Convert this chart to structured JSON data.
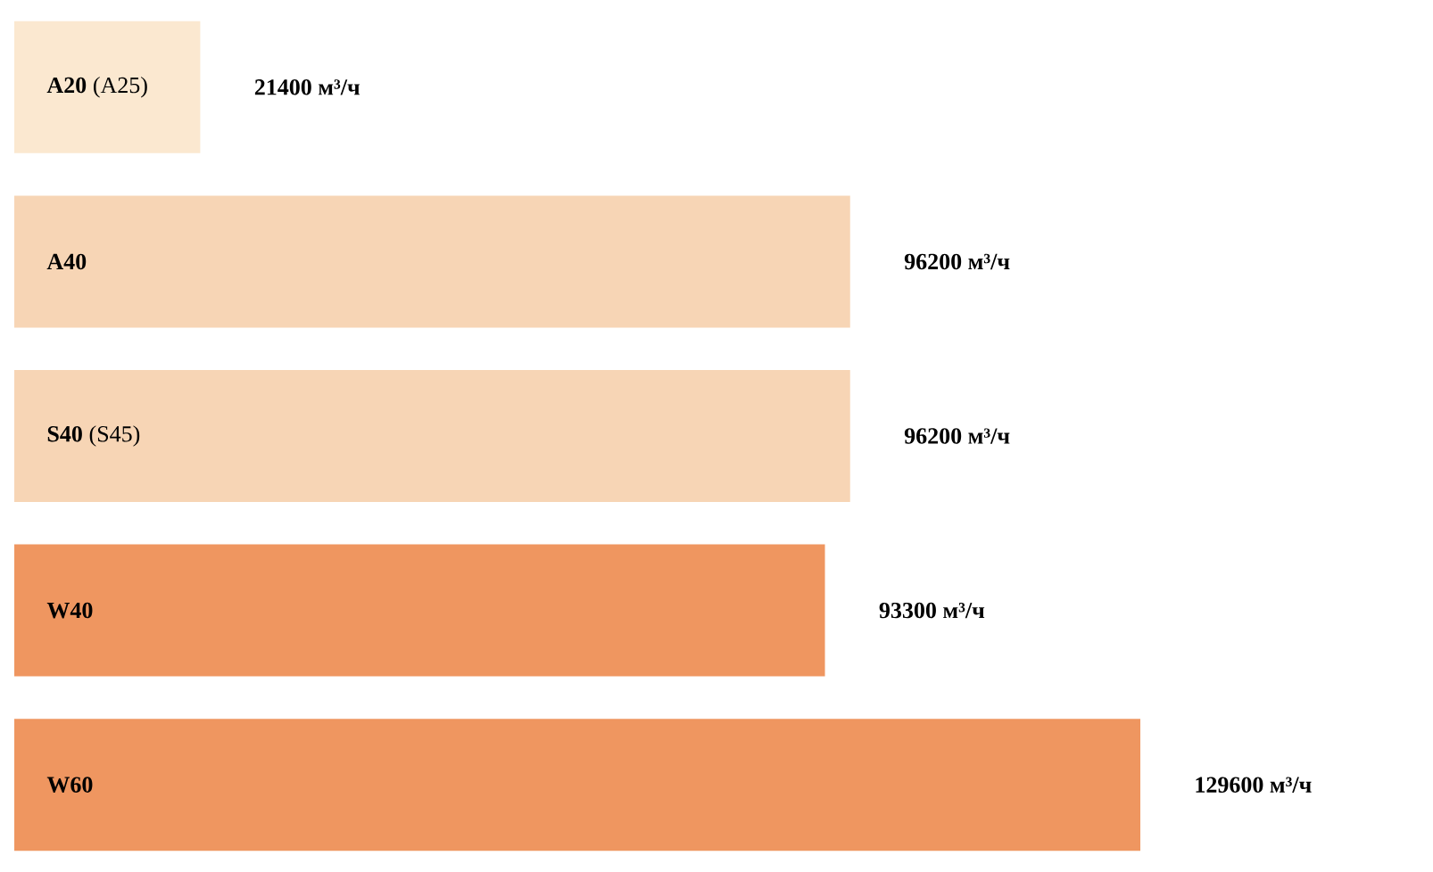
{
  "chart_data": {
    "type": "bar",
    "orientation": "horizontal",
    "categories": [
      "**A20** (A25)",
      "**A40**",
      "**S40** (S45)",
      "**W40**",
      "**W60**"
    ],
    "values": [
      21400,
      96200,
      96200,
      93300,
      129600
    ],
    "colors": [
      "#fbe8d0",
      "#f7d5b5",
      "#f7d5b5",
      "#ef9660",
      "#ef9660"
    ],
    "value_labels": [
      "21400 м³/ч",
      "96200 м³/ч",
      "96200 м³/ч",
      "93300 м³/ч",
      "129600 м³/ч"
    ]
  }
}
